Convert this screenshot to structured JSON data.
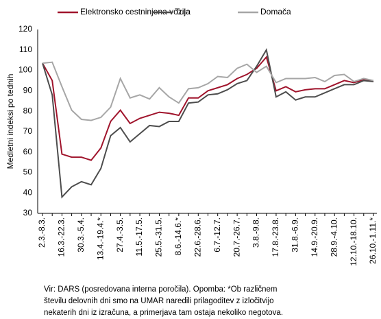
{
  "chart_data": {
    "type": "line",
    "ylabel": "Medletni indeksi po tednih",
    "categories": [
      "2.3.-8.3.",
      null,
      "16.3.-22.3.",
      null,
      "30.3.-5.4.",
      null,
      "13.4.-19.4.*",
      null,
      "27.4.-3.5.",
      null,
      "11.5.-17.5.",
      null,
      "25.5.-31.5.",
      null,
      "8.6.-14.6.*",
      null,
      "22.6.-28.6.",
      null,
      "6.7.-12.7.",
      null,
      "20.7.-26.7.",
      null,
      "3.8.-9.8.",
      null,
      "17.8.-23.8.",
      null,
      "31.8.-6.9.",
      null,
      "14.9.-20.9.",
      null,
      "28.9.-4.10.",
      null,
      "12.10.-18.10.",
      null,
      "26.10.-1.11.*"
    ],
    "series": [
      {
        "name": "Elektronsko cestninjena vozila",
        "color": "#a0142c",
        "values": [
          103.5,
          95,
          59,
          57.5,
          57.5,
          56,
          62,
          75,
          80.5,
          74,
          76.5,
          78,
          79.5,
          79,
          78,
          86.5,
          86.5,
          90,
          91.5,
          93,
          96,
          98,
          101,
          106.5,
          90,
          92,
          89.5,
          90.5,
          91,
          91,
          93,
          95,
          94,
          95.5,
          94.5
        ]
      },
      {
        "name": "Tuja",
        "color": "#4d4d4d",
        "values": [
          103.5,
          88,
          38,
          43,
          45.5,
          44,
          52,
          68,
          72,
          65,
          69,
          73,
          72.5,
          75,
          75,
          84,
          84.5,
          88,
          88.5,
          90.5,
          93.5,
          95,
          102,
          110,
          87,
          89.5,
          85.5,
          87,
          87,
          89,
          91,
          93,
          93,
          95,
          94.5
        ]
      },
      {
        "name": "Domača",
        "color": "#a6a6a6",
        "values": [
          103.5,
          104,
          92,
          80.5,
          76,
          75.5,
          77,
          82,
          96,
          86.5,
          88,
          86,
          91.5,
          87,
          84,
          91,
          91.5,
          93.5,
          97,
          96.5,
          101,
          103,
          99,
          102,
          94,
          96,
          96,
          96,
          96.5,
          94.5,
          97.5,
          98,
          94.5,
          96,
          95
        ]
      }
    ],
    "ylim": [
      30,
      120
    ],
    "yticks": [
      30,
      40,
      50,
      60,
      70,
      80,
      90,
      100,
      110,
      120
    ],
    "legend": "top",
    "notes": [
      "Vir: DARS  (posredovana interna poročila). Opomba: *Ob različnem",
      "številu delovnih dni smo na UMAR naredili prilagoditev z izločitvijo",
      "nekaterih dni iz izračuna, a primerjava tam ostaja nekoliko negotova."
    ]
  }
}
